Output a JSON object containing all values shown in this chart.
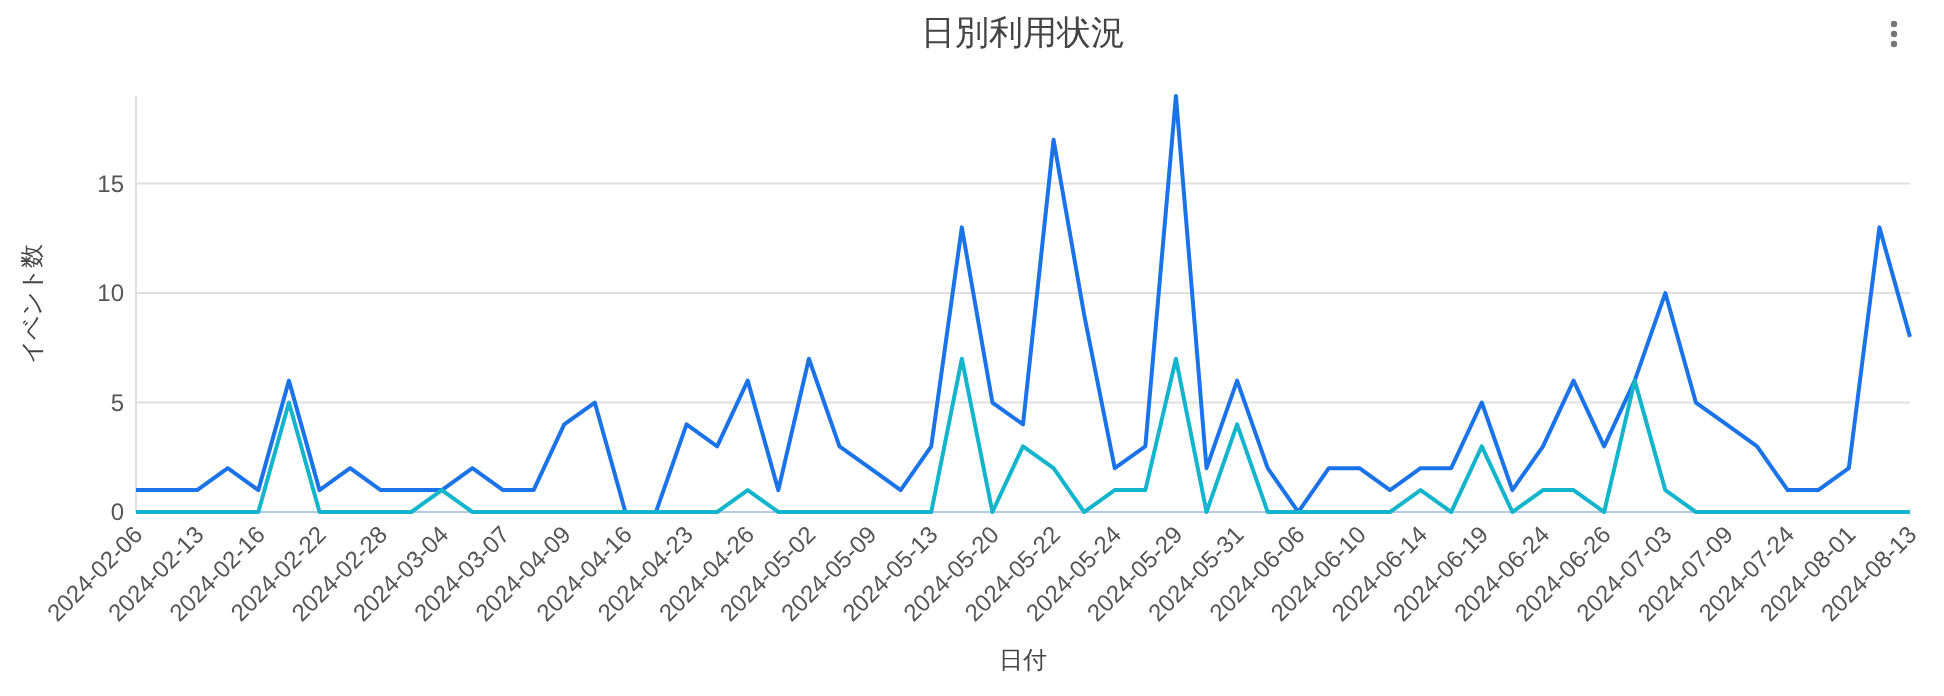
{
  "chart_data": {
    "type": "line",
    "title": "日別利用状況",
    "xlabel": "日付",
    "ylabel": "イベント数",
    "categories": [
      "2024-02-06",
      null,
      "2024-02-13",
      null,
      "2024-02-16",
      null,
      "2024-02-22",
      null,
      "2024-02-28",
      null,
      "2024-03-04",
      null,
      "2024-03-07",
      null,
      "2024-04-09",
      null,
      "2024-04-16",
      null,
      "2024-04-23",
      null,
      "2024-04-26",
      null,
      "2024-05-02",
      null,
      "2024-05-09",
      null,
      "2024-05-13",
      null,
      "2024-05-20",
      null,
      "2024-05-22",
      null,
      "2024-05-24",
      null,
      "2024-05-29",
      null,
      "2024-05-31",
      null,
      "2024-06-06",
      null,
      "2024-06-10",
      null,
      "2024-06-14",
      null,
      "2024-06-19",
      null,
      "2024-06-24",
      null,
      "2024-06-26",
      null,
      "2024-07-03",
      null,
      "2024-07-09",
      null,
      "2024-07-24",
      null,
      "2024-08-01",
      null,
      "2024-08-13"
    ],
    "series": [
      {
        "color": "#1a73e8",
        "values": [
          1,
          1,
          1,
          2,
          1,
          6,
          1,
          2,
          1,
          1,
          1,
          2,
          1,
          1,
          4,
          5,
          0,
          0,
          4,
          3,
          6,
          1,
          7,
          3,
          2,
          1,
          3,
          13,
          5,
          4,
          17,
          9,
          2,
          3,
          19,
          2,
          6,
          2,
          0,
          2,
          2,
          1,
          2,
          2,
          5,
          1,
          3,
          6,
          3,
          6,
          10,
          5,
          4,
          3,
          1,
          1,
          2,
          13,
          8
        ]
      },
      {
        "color": "#12b5cb",
        "values": [
          0,
          0,
          0,
          0,
          0,
          5,
          0,
          0,
          0,
          0,
          1,
          0,
          0,
          0,
          0,
          0,
          0,
          0,
          0,
          0,
          1,
          0,
          0,
          0,
          0,
          0,
          0,
          7,
          0,
          3,
          2,
          0,
          1,
          1,
          7,
          0,
          4,
          0,
          0,
          0,
          0,
          0,
          1,
          0,
          3,
          0,
          1,
          1,
          0,
          6,
          1,
          0,
          0,
          0,
          0,
          0,
          0,
          0,
          0
        ]
      }
    ],
    "ylim": [
      0,
      19
    ],
    "yticks": [
      0,
      5,
      10,
      15
    ],
    "grid": "y",
    "marker": "none",
    "line_style": "solid"
  }
}
